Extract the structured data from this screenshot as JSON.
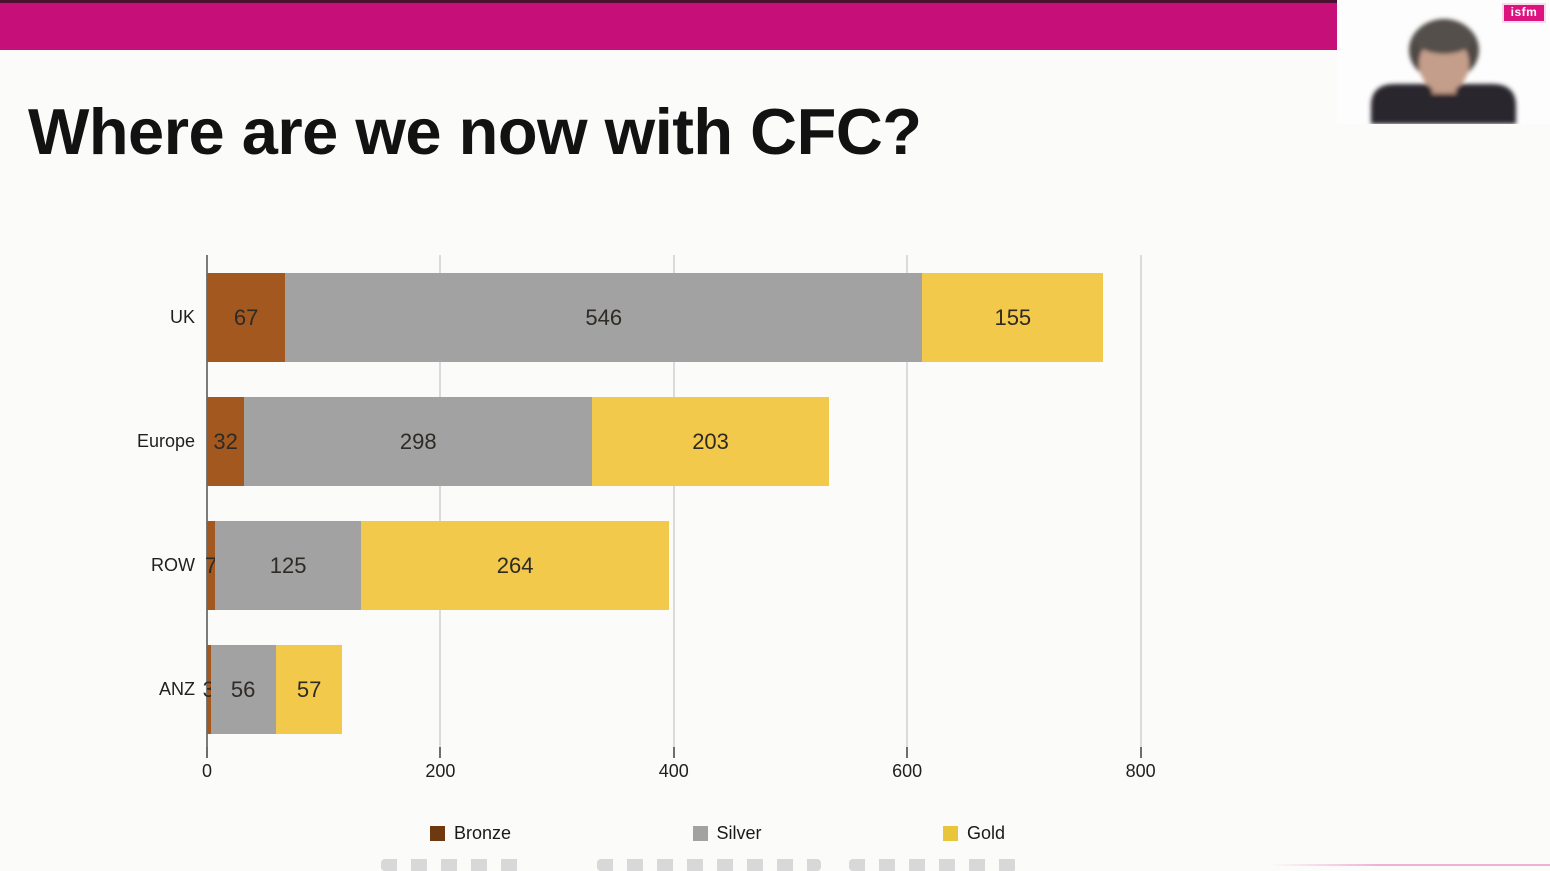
{
  "slide": {
    "title": "Where are we now with CFC?"
  },
  "branding": {
    "logo_text": "isfm",
    "accent_color": "#C60F79"
  },
  "chart_data": {
    "type": "bar",
    "orientation": "horizontal",
    "stacked": true,
    "title": "",
    "categories": [
      "UK",
      "Europe",
      "ROW",
      "ANZ"
    ],
    "series": [
      {
        "name": "Bronze",
        "color": "#A3581F",
        "legend_color": "#6F3910",
        "values": [
          67,
          32,
          7,
          3
        ]
      },
      {
        "name": "Silver",
        "color": "#A2A2A2",
        "legend_color": "#A2A2A2",
        "values": [
          546,
          298,
          125,
          56
        ]
      },
      {
        "name": "Gold",
        "color": "#F2C94B",
        "legend_color": "#E9C53C",
        "values": [
          155,
          203,
          264,
          57
        ]
      }
    ],
    "x_ticks": [
      0,
      200,
      400,
      600,
      800
    ],
    "xlim": [
      0,
      800
    ],
    "grid": true,
    "value_labels": true,
    "legend_position": "bottom"
  }
}
